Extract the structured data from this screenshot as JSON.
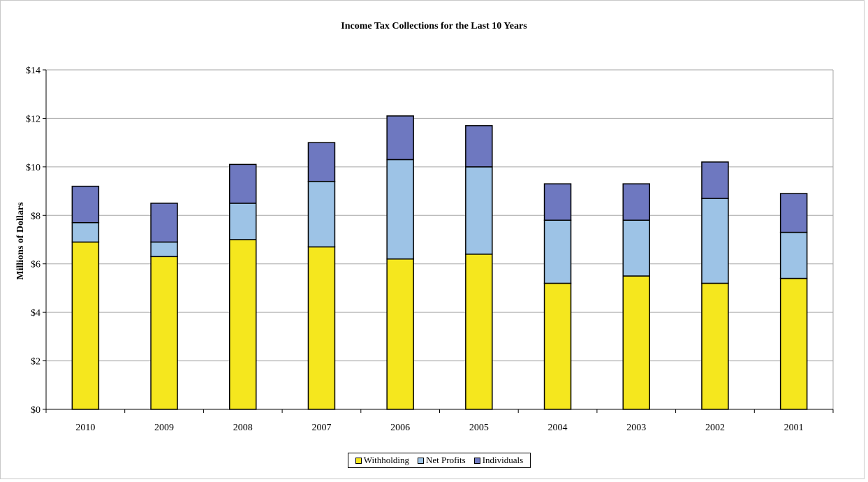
{
  "chart_data": {
    "type": "bar",
    "stacked": true,
    "title": "Income Tax Collections for the Last 10 Years",
    "xlabel": "",
    "ylabel": "Millions of Dollars",
    "ylim": [
      0,
      14
    ],
    "yticks": [
      "$0",
      "$2",
      "$4",
      "$6",
      "$8",
      "$10",
      "$12",
      "$14"
    ],
    "grid": true,
    "legend_position": "bottom",
    "categories": [
      "2010",
      "2009",
      "2008",
      "2007",
      "2006",
      "2005",
      "2004",
      "2003",
      "2002",
      "2001"
    ],
    "series": [
      {
        "name": "Withholding",
        "color": "#F5E71E",
        "values": [
          6.9,
          6.3,
          7.0,
          6.7,
          6.2,
          6.4,
          5.2,
          5.5,
          5.2,
          5.4
        ]
      },
      {
        "name": "Net Profits",
        "color": "#9DC3E6",
        "values": [
          0.8,
          0.6,
          1.5,
          2.7,
          4.1,
          3.6,
          2.6,
          2.3,
          3.5,
          1.9
        ]
      },
      {
        "name": "Individuals",
        "color": "#6E78C0",
        "values": [
          1.5,
          1.6,
          1.6,
          1.6,
          1.8,
          1.7,
          1.5,
          1.5,
          1.5,
          1.6
        ]
      }
    ]
  }
}
